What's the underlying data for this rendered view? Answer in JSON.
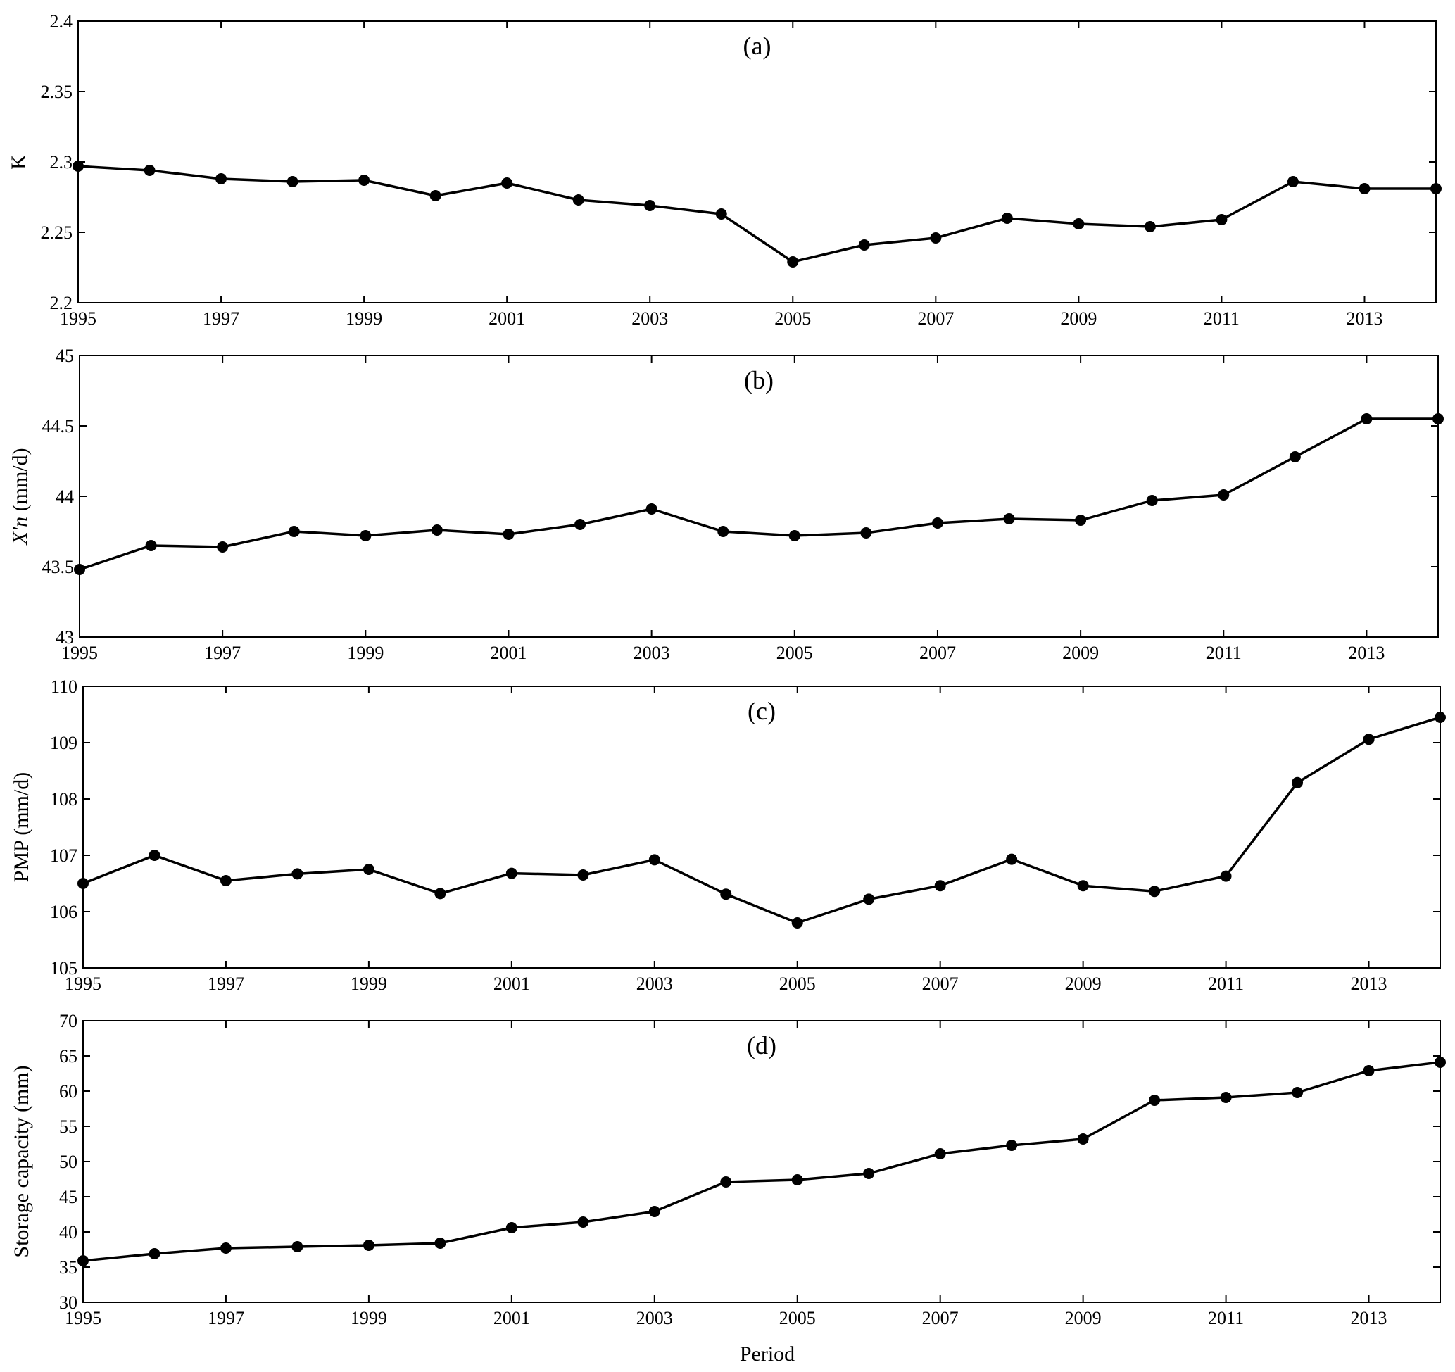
{
  "figure": {
    "xlabel": "Period"
  },
  "chart_data": [
    {
      "type": "line",
      "panel_label": "(a)",
      "ylabel": "K",
      "ylabel_italic": false,
      "x": [
        1995,
        1996,
        1997,
        1998,
        1999,
        2000,
        2001,
        2002,
        2003,
        2004,
        2005,
        2006,
        2007,
        2008,
        2009,
        2010,
        2011,
        2012,
        2013,
        2014
      ],
      "values": [
        2.297,
        2.294,
        2.288,
        2.286,
        2.287,
        2.276,
        2.285,
        2.273,
        2.269,
        2.263,
        2.229,
        2.241,
        2.246,
        2.26,
        2.256,
        2.254,
        2.259,
        2.286,
        2.281,
        2.281
      ],
      "xlim": [
        1995,
        2014
      ],
      "ylim": [
        2.2,
        2.4
      ],
      "xticks": [
        1995,
        1997,
        1999,
        2001,
        2003,
        2005,
        2007,
        2009,
        2011,
        2013
      ],
      "yticks": [
        2.2,
        2.25,
        2.3,
        2.35,
        2.4
      ],
      "ytick_labels": [
        "2.2",
        "2.25",
        "2.3",
        "2.35",
        "2.4"
      ],
      "marker": "filled-circle",
      "color": "#000000",
      "grid": false
    },
    {
      "type": "line",
      "panel_label": "(b)",
      "ylabel": "X'n (mm/d)",
      "ylabel_italic_part": "X'n",
      "ylabel_plain_part": " (mm/d)",
      "x": [
        1995,
        1996,
        1997,
        1998,
        1999,
        2000,
        2001,
        2002,
        2003,
        2004,
        2005,
        2006,
        2007,
        2008,
        2009,
        2010,
        2011,
        2012,
        2013,
        2014
      ],
      "values": [
        43.48,
        43.65,
        43.64,
        43.75,
        43.72,
        43.76,
        43.73,
        43.8,
        43.91,
        43.75,
        43.72,
        43.74,
        43.81,
        43.84,
        43.83,
        43.97,
        44.01,
        44.28,
        44.55,
        44.55
      ],
      "xlim": [
        1995,
        2014
      ],
      "ylim": [
        43,
        45
      ],
      "xticks": [
        1995,
        1997,
        1999,
        2001,
        2003,
        2005,
        2007,
        2009,
        2011,
        2013
      ],
      "yticks": [
        43,
        43.5,
        44,
        44.5,
        45
      ],
      "ytick_labels": [
        "43",
        "43.5",
        "44",
        "44.5",
        "45"
      ],
      "marker": "filled-circle",
      "color": "#000000",
      "grid": false
    },
    {
      "type": "line",
      "panel_label": "(c)",
      "ylabel": "PMP (mm/d)",
      "ylabel_italic": false,
      "x": [
        1995,
        1996,
        1997,
        1998,
        1999,
        2000,
        2001,
        2002,
        2003,
        2004,
        2005,
        2006,
        2007,
        2008,
        2009,
        2010,
        2011,
        2012,
        2013,
        2014
      ],
      "values": [
        106.5,
        107.0,
        106.55,
        106.67,
        106.75,
        106.32,
        106.68,
        106.65,
        106.92,
        106.31,
        105.8,
        106.22,
        106.46,
        106.93,
        106.46,
        106.36,
        106.63,
        108.29,
        109.06,
        109.45
      ],
      "xlim": [
        1995,
        2014
      ],
      "ylim": [
        105,
        110
      ],
      "xticks": [
        1995,
        1997,
        1999,
        2001,
        2003,
        2005,
        2007,
        2009,
        2011,
        2013
      ],
      "yticks": [
        105,
        106,
        107,
        108,
        109,
        110
      ],
      "ytick_labels": [
        "105",
        "106",
        "107",
        "108",
        "109",
        "110"
      ],
      "marker": "filled-circle",
      "color": "#000000",
      "grid": false
    },
    {
      "type": "line",
      "panel_label": "(d)",
      "ylabel": "Storage capacity (mm)",
      "ylabel_italic": false,
      "x": [
        1995,
        1996,
        1997,
        1998,
        1999,
        2000,
        2001,
        2002,
        2003,
        2004,
        2005,
        2006,
        2007,
        2008,
        2009,
        2010,
        2011,
        2012,
        2013,
        2014
      ],
      "values": [
        35.9,
        36.9,
        37.7,
        37.9,
        38.1,
        38.4,
        40.6,
        41.4,
        42.9,
        47.1,
        47.4,
        48.3,
        51.1,
        52.3,
        53.2,
        58.7,
        59.1,
        59.8,
        62.9,
        64.1
      ],
      "xlim": [
        1995,
        2014
      ],
      "ylim": [
        30,
        70
      ],
      "xticks": [
        1995,
        1997,
        1999,
        2001,
        2003,
        2005,
        2007,
        2009,
        2011,
        2013
      ],
      "yticks": [
        30,
        35,
        40,
        45,
        50,
        55,
        60,
        65,
        70
      ],
      "ytick_labels": [
        "30",
        "35",
        "40",
        "45",
        "50",
        "55",
        "60",
        "65",
        "70"
      ],
      "marker": "filled-circle",
      "color": "#000000",
      "grid": false
    }
  ]
}
